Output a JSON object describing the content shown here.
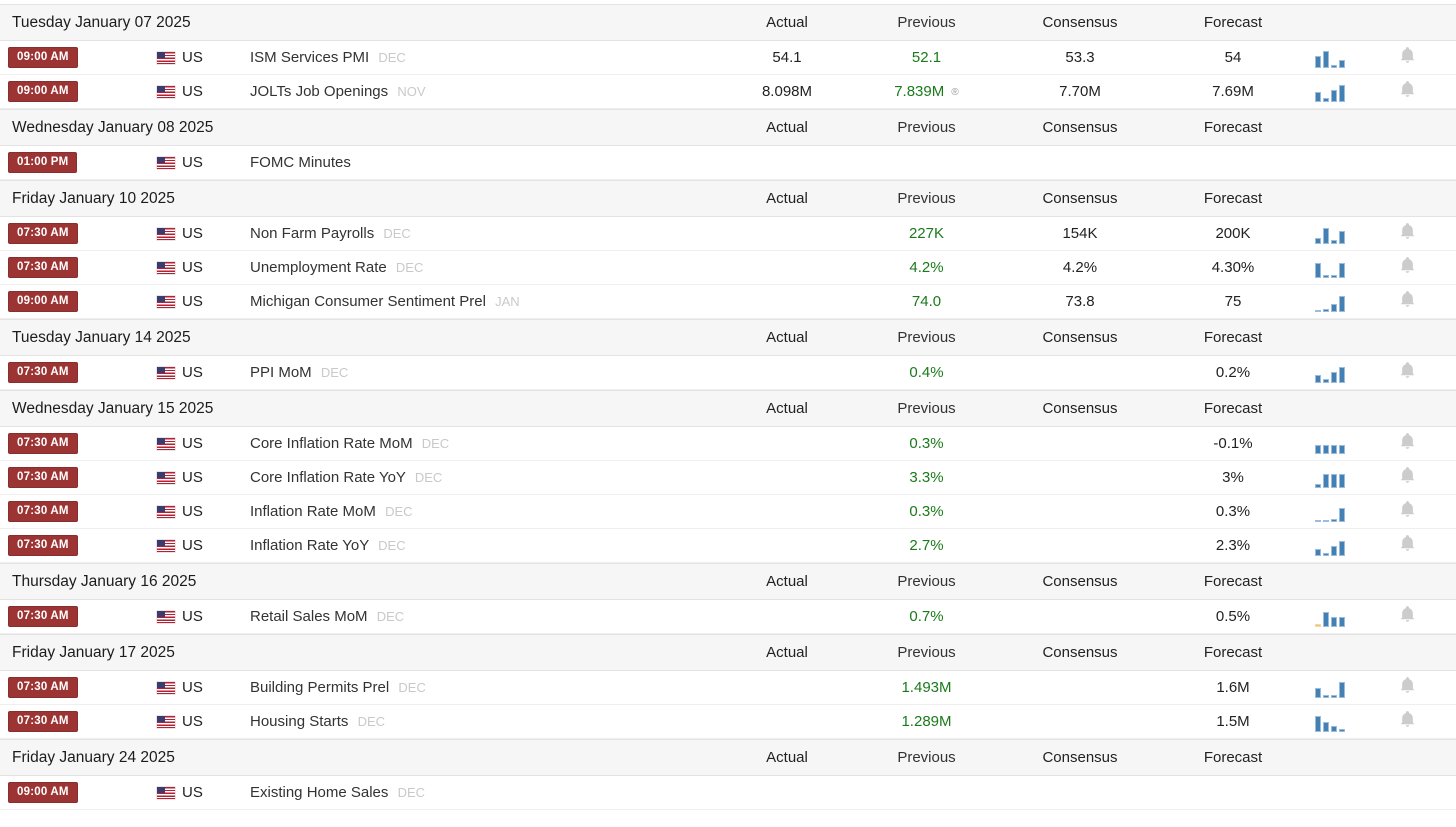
{
  "columns": {
    "actual": "Actual",
    "previous": "Previous",
    "consensus": "Consensus",
    "forecast": "Forecast"
  },
  "colors": {
    "badge_bg": "#9c3434",
    "badge_border": "#872e2e",
    "previous_green": "#1a7a1a",
    "spark_blue": "#4380b4",
    "spark_orange": "#f5c26e",
    "date_row_bg": "#f6f6f6",
    "bell_gray": "#cccccc",
    "month_gray": "#c9c9c9"
  },
  "days": [
    {
      "date": "Tuesday January 07 2025",
      "events": [
        {
          "time": "09:00 AM",
          "country": "US",
          "name": "ISM Services PMI",
          "month": "DEC",
          "actual": "54.1",
          "previous": "52.1",
          "revised": false,
          "consensus": "53.3",
          "forecast": "54",
          "spark": [
            12,
            17,
            3,
            8
          ],
          "spark_colors": [
            "blue",
            "blue",
            "blue",
            "blue"
          ],
          "bell": true
        },
        {
          "time": "09:00 AM",
          "country": "US",
          "name": "JOLTs Job Openings",
          "month": "NOV",
          "actual": "8.098M",
          "previous": "7.839M",
          "revised": true,
          "consensus": "7.70M",
          "forecast": "7.69M",
          "spark": [
            10,
            4,
            12,
            17
          ],
          "spark_colors": [
            "blue",
            "blue",
            "blue",
            "blue"
          ],
          "bell": true
        }
      ]
    },
    {
      "date": "Wednesday January 08 2025",
      "events": [
        {
          "time": "01:00 PM",
          "country": "US",
          "name": "FOMC Minutes",
          "month": "",
          "actual": "",
          "previous": "",
          "revised": false,
          "consensus": "",
          "forecast": "",
          "spark": null,
          "spark_colors": null,
          "bell": false
        }
      ]
    },
    {
      "date": "Friday January 10 2025",
      "events": [
        {
          "time": "07:30 AM",
          "country": "US",
          "name": "Non Farm Payrolls",
          "month": "DEC",
          "actual": "",
          "previous": "227K",
          "revised": false,
          "consensus": "154K",
          "forecast": "200K",
          "spark": [
            6,
            16,
            4,
            13
          ],
          "spark_colors": [
            "blue",
            "blue",
            "blue",
            "blue"
          ],
          "bell": true
        },
        {
          "time": "07:30 AM",
          "country": "US",
          "name": "Unemployment Rate",
          "month": "DEC",
          "actual": "",
          "previous": "4.2%",
          "revised": false,
          "consensus": "4.2%",
          "forecast": "4.30%",
          "spark": [
            15,
            3,
            3,
            15
          ],
          "spark_colors": [
            "blue",
            "blue",
            "blue",
            "blue"
          ],
          "bell": true
        },
        {
          "time": "09:00 AM",
          "country": "US",
          "name": "Michigan Consumer Sentiment Prel",
          "month": "JAN",
          "actual": "",
          "previous": "74.0",
          "revised": false,
          "consensus": "73.8",
          "forecast": "75",
          "spark": [
            2,
            3,
            8,
            16
          ],
          "spark_colors": [
            "blue",
            "blue",
            "blue",
            "blue"
          ],
          "bell": true
        }
      ]
    },
    {
      "date": "Tuesday January 14 2025",
      "events": [
        {
          "time": "07:30 AM",
          "country": "US",
          "name": "PPI MoM",
          "month": "DEC",
          "actual": "",
          "previous": "0.4%",
          "revised": false,
          "consensus": "",
          "forecast": "0.2%",
          "spark": [
            8,
            4,
            11,
            16
          ],
          "spark_colors": [
            "blue",
            "blue",
            "blue",
            "blue"
          ],
          "bell": true
        }
      ]
    },
    {
      "date": "Wednesday January 15 2025",
      "events": [
        {
          "time": "07:30 AM",
          "country": "US",
          "name": "Core Inflation Rate MoM",
          "month": "DEC",
          "actual": "",
          "previous": "0.3%",
          "revised": false,
          "consensus": "",
          "forecast": "-0.1%",
          "spark": [
            9,
            9,
            9,
            9
          ],
          "spark_colors": [
            "blue",
            "blue",
            "blue",
            "blue"
          ],
          "bell": true
        },
        {
          "time": "07:30 AM",
          "country": "US",
          "name": "Core Inflation Rate YoY",
          "month": "DEC",
          "actual": "",
          "previous": "3.3%",
          "revised": false,
          "consensus": "",
          "forecast": "3%",
          "spark": [
            4,
            14,
            14,
            14
          ],
          "spark_colors": [
            "blue",
            "blue",
            "blue",
            "blue"
          ],
          "bell": true
        },
        {
          "time": "07:30 AM",
          "country": "US",
          "name": "Inflation Rate MoM",
          "month": "DEC",
          "actual": "",
          "previous": "0.3%",
          "revised": false,
          "consensus": "",
          "forecast": "0.3%",
          "spark": [
            2,
            2,
            3,
            14
          ],
          "spark_colors": [
            "blue",
            "blue",
            "blue",
            "blue"
          ],
          "bell": true
        },
        {
          "time": "07:30 AM",
          "country": "US",
          "name": "Inflation Rate YoY",
          "month": "DEC",
          "actual": "",
          "previous": "2.7%",
          "revised": false,
          "consensus": "",
          "forecast": "2.3%",
          "spark": [
            7,
            3,
            10,
            15
          ],
          "spark_colors": [
            "blue",
            "blue",
            "blue",
            "blue"
          ],
          "bell": true
        }
      ]
    },
    {
      "date": "Thursday January 16 2025",
      "events": [
        {
          "time": "07:30 AM",
          "country": "US",
          "name": "Retail Sales MoM",
          "month": "DEC",
          "actual": "",
          "previous": "0.7%",
          "revised": false,
          "consensus": "",
          "forecast": "0.5%",
          "spark": [
            3,
            15,
            10,
            10
          ],
          "spark_colors": [
            "orange",
            "blue",
            "blue",
            "blue"
          ],
          "bell": true
        }
      ]
    },
    {
      "date": "Friday January 17 2025",
      "events": [
        {
          "time": "07:30 AM",
          "country": "US",
          "name": "Building Permits Prel",
          "month": "DEC",
          "actual": "",
          "previous": "1.493M",
          "revised": false,
          "consensus": "",
          "forecast": "1.6M",
          "spark": [
            10,
            3,
            3,
            16
          ],
          "spark_colors": [
            "blue",
            "blue",
            "blue",
            "blue"
          ],
          "bell": true
        },
        {
          "time": "07:30 AM",
          "country": "US",
          "name": "Housing Starts",
          "month": "DEC",
          "actual": "",
          "previous": "1.289M",
          "revised": false,
          "consensus": "",
          "forecast": "1.5M",
          "spark": [
            16,
            10,
            6,
            3
          ],
          "spark_colors": [
            "blue",
            "blue",
            "blue",
            "blue"
          ],
          "bell": true
        }
      ]
    },
    {
      "date": "Friday January 24 2025",
      "events": [
        {
          "time": "09:00 AM",
          "country": "US",
          "name": "Existing Home Sales",
          "month": "DEC",
          "actual": "",
          "previous": "",
          "revised": false,
          "consensus": "",
          "forecast": "",
          "spark": null,
          "spark_colors": null,
          "bell": false
        }
      ]
    }
  ]
}
